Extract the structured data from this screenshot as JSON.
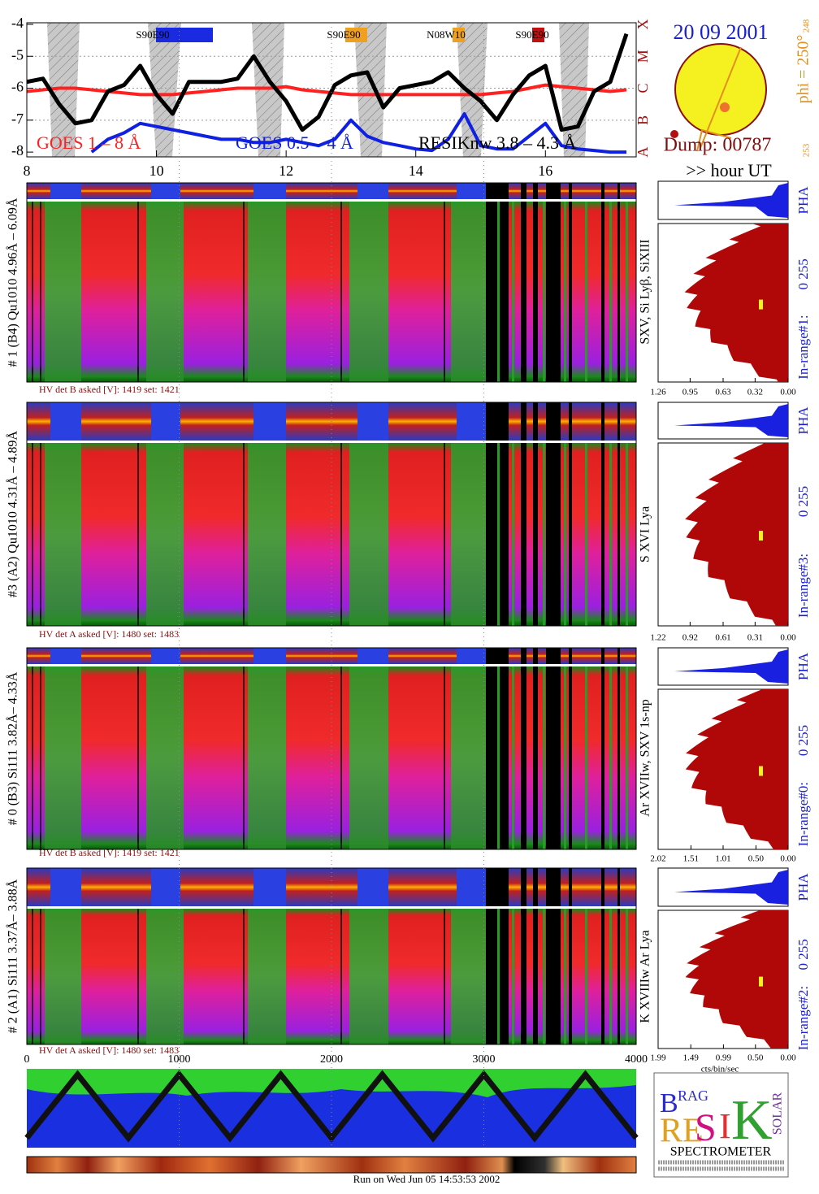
{
  "chart_data": {
    "type": "line",
    "x": [
      8.0,
      8.25,
      8.5,
      8.75,
      9.0,
      9.25,
      9.5,
      9.75,
      10.0,
      10.25,
      10.5,
      10.75,
      11.0,
      11.25,
      11.5,
      11.75,
      12.0,
      12.25,
      12.5,
      12.75,
      13.0,
      13.25,
      13.5,
      13.75,
      14.0,
      14.25,
      14.5,
      14.75,
      15.0,
      15.25,
      15.5,
      15.75,
      16.0,
      16.25,
      16.5,
      16.75,
      17.0,
      17.25
    ],
    "series": [
      {
        "name": "GOES 1 – 8 Å",
        "color": "#ff2020",
        "values": [
          -6.1,
          -6.05,
          -6.0,
          -6.0,
          -6.05,
          -6.1,
          -6.15,
          -6.2,
          -6.2,
          -6.2,
          -6.15,
          -6.1,
          -6.05,
          -6.0,
          -6.0,
          -6.0,
          -5.95,
          -6.05,
          -6.1,
          -6.15,
          -6.2,
          -6.2,
          -6.2,
          -6.2,
          -6.2,
          -6.2,
          -6.2,
          -6.2,
          -6.2,
          -6.15,
          -6.1,
          -6.0,
          -5.9,
          -5.95,
          -6.0,
          -6.05,
          -6.1,
          -6.05
        ]
      },
      {
        "name": "GOES 0.5 – 4 Å",
        "color": "#1020e0",
        "values": [
          null,
          null,
          null,
          null,
          -8.0,
          -7.6,
          -7.4,
          -7.1,
          -7.2,
          -7.3,
          -7.4,
          -7.5,
          -7.6,
          -7.6,
          -7.7,
          -7.7,
          -7.6,
          -7.7,
          -7.8,
          -7.6,
          -7.0,
          -7.5,
          -7.7,
          -7.8,
          -7.9,
          -7.95,
          -7.6,
          -6.8,
          -7.8,
          -7.9,
          -7.9,
          -7.5,
          -7.1,
          -7.8,
          -7.9,
          -7.95,
          -8.0,
          -8.0
        ]
      },
      {
        "name": "RESIKnw 3.8 – 4.3 Å",
        "color": "#000000",
        "values": [
          -5.8,
          -5.7,
          -6.5,
          -7.1,
          -7.0,
          -6.1,
          -5.9,
          -5.3,
          -6.2,
          -6.8,
          -5.8,
          -5.8,
          -5.8,
          -5.7,
          -5.0,
          -5.8,
          -6.4,
          -7.3,
          -6.9,
          -5.9,
          -5.6,
          -5.5,
          -6.6,
          -6.0,
          -5.9,
          -5.8,
          -5.5,
          -6.0,
          -6.4,
          -7.0,
          -6.2,
          -5.6,
          -5.3,
          -7.3,
          -7.2,
          -6.1,
          -5.8,
          -4.3
        ]
      }
    ],
    "xlim": [
      8,
      17.4
    ],
    "ylim": [
      -8.15,
      -3.95
    ],
    "xticks": [
      8,
      10,
      12,
      14,
      16
    ],
    "yticks": [
      -4,
      -5,
      -6,
      -7,
      -8
    ],
    "flare_classes": [
      "X",
      "M",
      "C",
      "B",
      "A"
    ],
    "x_label": ">> hour UT",
    "grid": true,
    "annotations": [
      "S90E90",
      "S90E90",
      "N08W10",
      "S90E90"
    ]
  },
  "date_panel": {
    "date": "20 09 2001",
    "dump": "Dump: 00787",
    "phi": "phi = 250°",
    "phi_a": "248",
    "phi_b": "253"
  },
  "channels": [
    {
      "label": "# 1 (B4) Qu1010 4.96Å – 6.09Å",
      "lines": "SXV, Si Lyβ, SiXIII",
      "pha": "PHA",
      "range": "0 255",
      "in_range": "In-range#1:",
      "hv": "HV det B asked [V]:  1419 set:  1421",
      "xlim": [
        1.26,
        0
      ],
      "xticks": [
        1.26,
        0.95,
        0.63,
        0.32,
        {
          "value": 0,
          "label": "0.00"
        }
      ]
    },
    {
      "label": "#3 (A2) Qu1010  4.31Å – 4.89Å",
      "lines": "S XVI Lya",
      "pha": "PHA",
      "range": "0 255",
      "in_range": "In-range#3:",
      "hv": "HV det A asked [V]:  1480 set:  1483",
      "xlim": [
        1.22,
        0
      ],
      "xticks": [
        1.22,
        0.92,
        0.61,
        0.31,
        {
          "value": 0,
          "label": "0.00"
        }
      ]
    },
    {
      "label": "# 0 (B3) Si111  3.82Å– 4.33Å",
      "lines": "Ar XVIIw,  SXV 1s-np",
      "pha": "PHA",
      "range": "0 255",
      "in_range": "In-range#0:",
      "hv": "HV det B asked [V]:  1419 set:  1421",
      "xlim": [
        2.02,
        0
      ],
      "xticks": [
        2.02,
        1.51,
        1.01,
        {
          "value": 0.5,
          "label": "0.50"
        },
        {
          "value": 0,
          "label": "0.00"
        }
      ]
    },
    {
      "label": "# 2 (A1) Si111  3.37Å– 3.88Å",
      "lines": "K XVIIIw  Ar Lya",
      "pha": "PHA",
      "range": "0 255",
      "in_range": "In-range#2:",
      "hv": "HV det A asked [V]:  1480 set:  1483",
      "xlim": [
        1.99,
        0
      ],
      "xticks": [
        1.99,
        1.49,
        0.99,
        {
          "value": 0.5,
          "label": "0.50"
        },
        {
          "value": 0,
          "label": "0.00"
        }
      ]
    }
  ],
  "bin_axis": {
    "xlim": [
      0,
      4000
    ],
    "xticks": [
      0,
      1000,
      2000,
      3000,
      4000
    ]
  },
  "hist_unit": "cts/bin/sec",
  "footer": "Run on Wed Jun 05 14:53:53 2002",
  "logo": {
    "word": "SPECTROMETER",
    "letters": [
      "B",
      "RAG",
      "RE",
      "S",
      "I",
      "K",
      "SOLAR"
    ]
  }
}
